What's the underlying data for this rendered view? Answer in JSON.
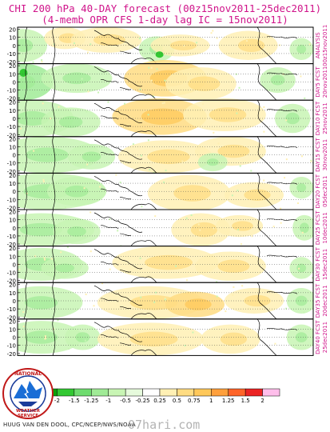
{
  "title_line1": "CHI 200 hPa 40-DAY forecast (00z15nov2011-25dec2011)",
  "title_line2": "(4-memb OPR CFS 1-day lag IC = 15nov2011)",
  "credit": "HUUG VAN DEN DOOL, CPC/NCEP/NWS/NOAA",
  "watermark": "07hari.com",
  "logo_text": "NATIONAL WEATHER SERVICE",
  "chart_data": {
    "type": "heatmap",
    "title": "CHI 200 hPa 40-DAY forecast (00z15nov2011-25dec2011)",
    "subtitle": "(4-memb OPR CFS 1-day lag IC = 15nov2011)",
    "lat_ticks": [
      20,
      10,
      0,
      -10,
      -20
    ],
    "panels": [
      {
        "label1": "ANALYSIS",
        "label2": "00z15nov2011"
      },
      {
        "label1": "DAY5 FCST",
        "label2": "20nov2011"
      },
      {
        "label1": "DAY10 FCST",
        "label2": "25nov2011"
      },
      {
        "label1": "DAY15 FCST",
        "label2": "30nov2011"
      },
      {
        "label1": "DAY20 FCST",
        "label2": "05dec2011"
      },
      {
        "label1": "DAY25 FCST",
        "label2": "10dec2011"
      },
      {
        "label1": "DAY30 FCST",
        "label2": "15dec2011"
      },
      {
        "label1": "DAY35 FCST",
        "label2": "20dec2011"
      },
      {
        "label1": "DAY40 FCST",
        "label2": "25dec2011"
      }
    ],
    "colorbar": {
      "labels": [
        "-2",
        "-1.5",
        "-1.25",
        "-1",
        "-0.5",
        "-0.25",
        "0.25",
        "0.5",
        "0.75",
        "1",
        "1.25",
        "1.5",
        "2"
      ],
      "colors": [
        "#0aa00a",
        "#32c832",
        "#6edc6e",
        "#a0eb96",
        "#c8f5b4",
        "#e6fadc",
        "#ffffff",
        "#fff0b4",
        "#ffdc82",
        "#ffc85a",
        "#ffa03c",
        "#ff6428",
        "#eb2323",
        "#ffbeeb"
      ]
    }
  }
}
